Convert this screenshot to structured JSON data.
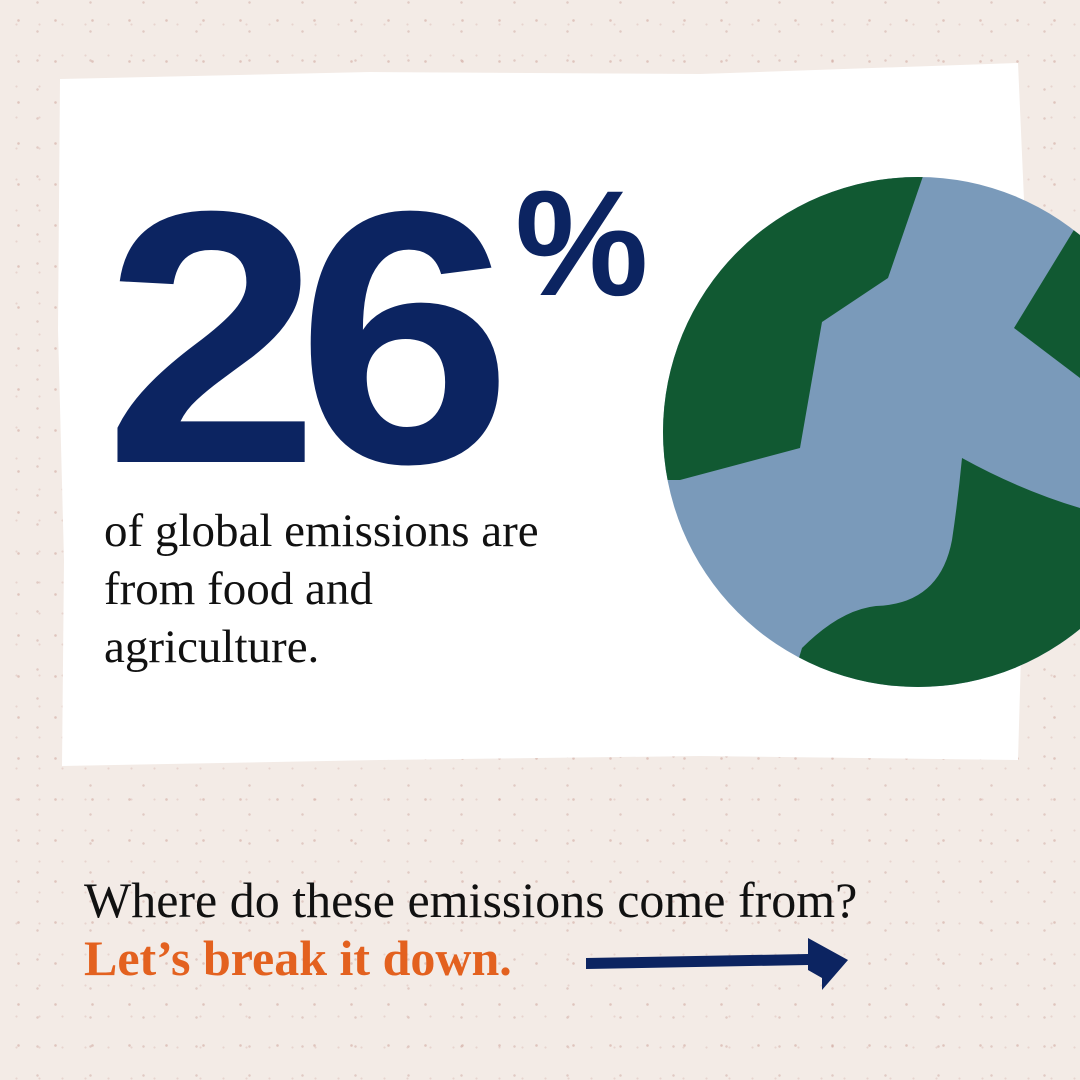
{
  "stat": {
    "value": "26",
    "unit": "%",
    "caption": "of global emissions are from food and agriculture."
  },
  "footer": {
    "question": "Where do these emissions come from?",
    "cta": "Let’s break it down."
  },
  "icons": {
    "globe": "globe-icon",
    "arrow": "arrow-right-icon"
  },
  "colors": {
    "background": "#f3ebe6",
    "card": "#ffffff",
    "navy": "#0c2461",
    "ocean": "#7a9aba",
    "land": "#115932",
    "accent_orange": "#e3611f",
    "text": "#111111"
  }
}
